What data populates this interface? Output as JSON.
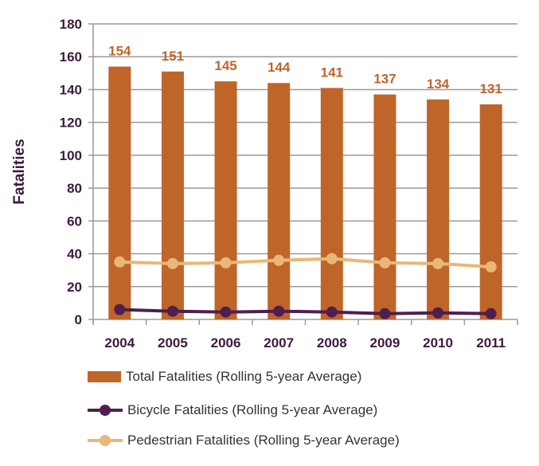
{
  "chart_data": {
    "type": "bar",
    "title": "",
    "xlabel": "",
    "ylabel": "Fatalities",
    "ylim": [
      0,
      180
    ],
    "yticks": [
      0,
      20,
      40,
      60,
      80,
      100,
      120,
      140,
      160,
      180
    ],
    "grid": true,
    "legend_placement": "bottom",
    "categories": [
      "2004",
      "2005",
      "2006",
      "2007",
      "2008",
      "2009",
      "2010",
      "2011"
    ],
    "series": [
      {
        "name": "Total Fatalities (Rolling 5-year Average)",
        "kind": "bar",
        "color": "#c0652a",
        "values": [
          154,
          151,
          145,
          144,
          141,
          137,
          134,
          131
        ],
        "labels": [
          "154",
          "151",
          "145",
          "144",
          "141",
          "137",
          "134",
          "131"
        ]
      },
      {
        "name": "Bicycle Fatalities (Rolling 5-year Average)",
        "kind": "line",
        "color": "#4e1f4e",
        "values": [
          6,
          5,
          4.5,
          5,
          4.5,
          3.5,
          4,
          3.5
        ]
      },
      {
        "name": "Pedestrian Fatalities (Rolling 5-year Average)",
        "kind": "line",
        "color": "#e8b878",
        "values": [
          35,
          34,
          34.5,
          36,
          37,
          34.5,
          34,
          32
        ]
      }
    ]
  }
}
